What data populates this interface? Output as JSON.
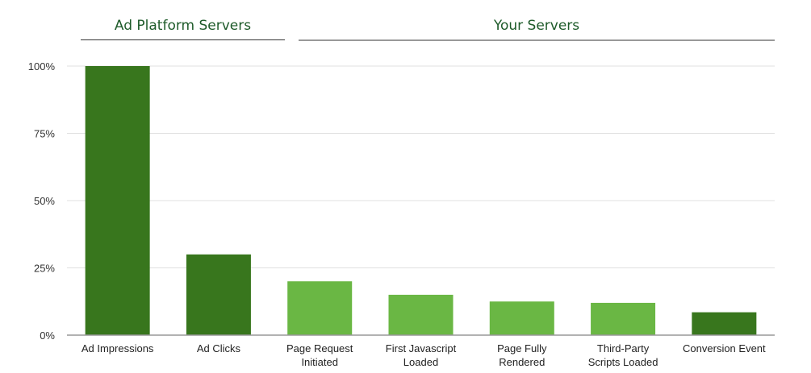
{
  "groups": [
    {
      "label": "Ad Platform Servers",
      "line_color": "#333333"
    },
    {
      "label": "Your Servers",
      "line_color": "#999999"
    }
  ],
  "chart_data": {
    "type": "bar",
    "title": "",
    "xlabel": "",
    "ylabel": "",
    "categories": [
      [
        "Ad Impressions"
      ],
      [
        "Ad Clicks"
      ],
      [
        "Page Request",
        "Initiated"
      ],
      [
        "First Javascript",
        "Loaded"
      ],
      [
        "Page Fully",
        "Rendered"
      ],
      [
        "Third-Party",
        "Scripts Loaded"
      ],
      [
        "Conversion Event"
      ]
    ],
    "values": [
      100,
      30,
      20,
      15,
      12.5,
      12,
      8.5
    ],
    "colors": [
      "#38761d",
      "#38761d",
      "#6ab744",
      "#6ab744",
      "#6ab744",
      "#6ab744",
      "#38761d"
    ],
    "ylim": [
      0,
      100
    ],
    "yticks": [
      0,
      25,
      50,
      75,
      100
    ],
    "ytick_labels": [
      "0%",
      "25%",
      "50%",
      "75%",
      "100%"
    ],
    "grid": true,
    "legend": "none"
  }
}
